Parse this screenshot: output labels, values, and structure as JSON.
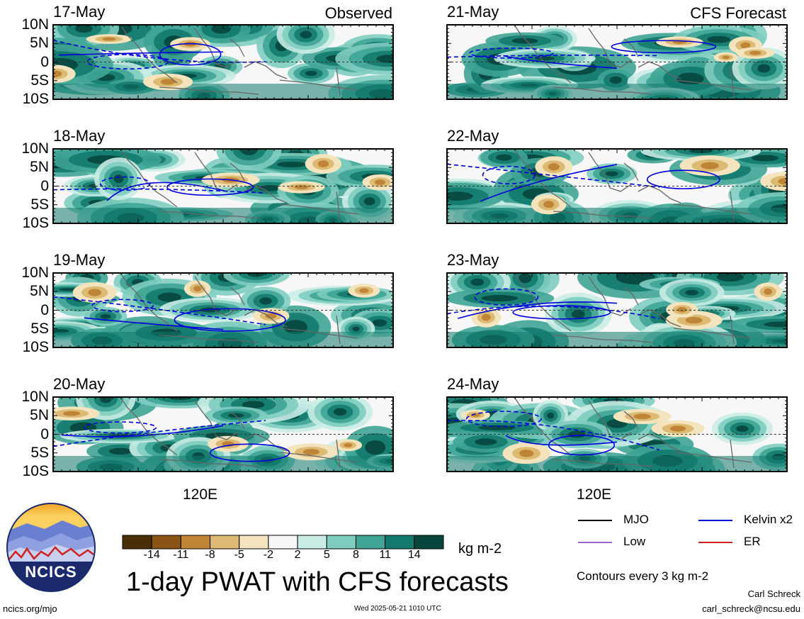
{
  "header": {
    "left_tag": "Observed",
    "right_tag": "CFS Forecast"
  },
  "panels": [
    {
      "id": "p17",
      "date": "17-May",
      "column": "observed"
    },
    {
      "id": "p18",
      "date": "18-May",
      "column": "observed"
    },
    {
      "id": "p19",
      "date": "19-May",
      "column": "observed"
    },
    {
      "id": "p20",
      "date": "20-May",
      "column": "observed"
    },
    {
      "id": "p21",
      "date": "21-May",
      "column": "forecast"
    },
    {
      "id": "p22",
      "date": "22-May",
      "column": "forecast"
    },
    {
      "id": "p23",
      "date": "23-May",
      "column": "forecast"
    },
    {
      "id": "p24",
      "date": "24-May",
      "column": "forecast"
    }
  ],
  "lat_labels": [
    "10N",
    "5N",
    "0",
    "5S",
    "10S"
  ],
  "lon_label": "120E",
  "colorbar": {
    "unit": "kg m-2",
    "ticks": [
      "-14",
      "-11",
      "-8",
      "-5",
      "-2",
      "2",
      "5",
      "8",
      "11",
      "14"
    ],
    "colors": [
      "#4a2e08",
      "#8a5514",
      "#c08436",
      "#dcba73",
      "#f4e4bd",
      "#f7f7f7",
      "#c9ece4",
      "#7fcdc0",
      "#3fa495",
      "#137a6d",
      "#06463d"
    ]
  },
  "legend": {
    "items": [
      {
        "label": "MJO",
        "color": "#000000"
      },
      {
        "label": "Kelvin x2",
        "color": "#0000dd"
      },
      {
        "label": "Low",
        "color": "#9966cc"
      },
      {
        "label": "ER",
        "color": "#cc2222"
      }
    ],
    "note": "Contours every 3 kg m-2"
  },
  "title": "1-day PWAT with CFS forecasts",
  "logo_text": "NCICS",
  "footer": {
    "url": "ncics.org/mjo",
    "timestamp": "Wed 2025-05-21 1010 UTC",
    "author": "Carl Schreck",
    "email": "carl_schreck@ncsu.edu"
  }
}
